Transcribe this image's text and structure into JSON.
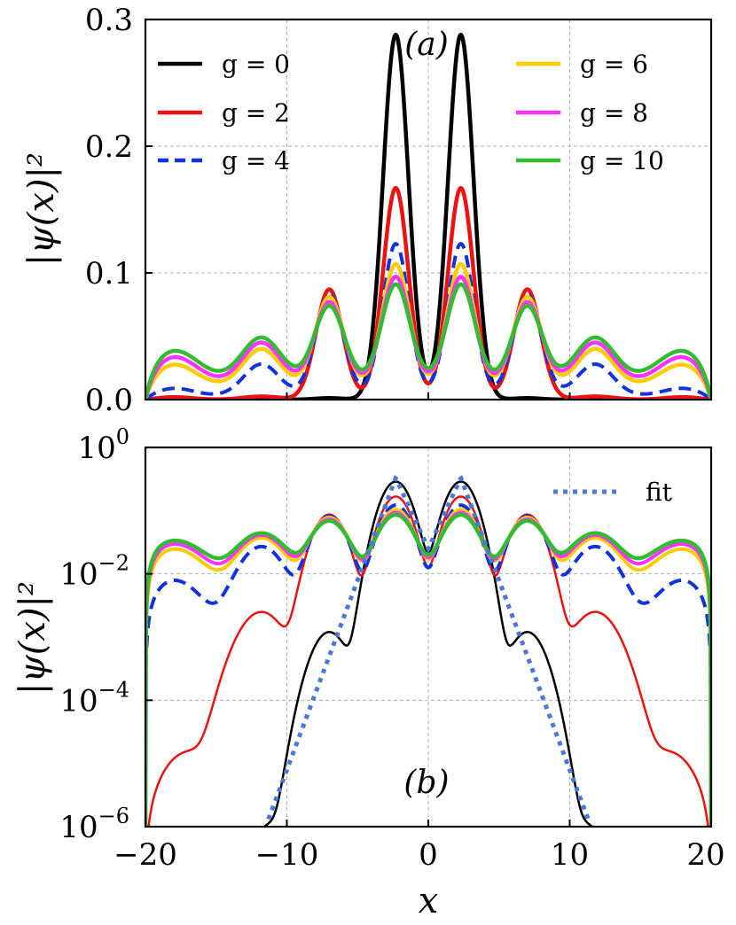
{
  "chart_data": [
    {
      "type": "line",
      "panel": "a",
      "panel_label": "(a)",
      "xlabel": "",
      "ylabel": "|ψ(x)|²",
      "xlim": [
        -20,
        20
      ],
      "ylim": [
        0,
        0.3
      ],
      "yscale": "linear",
      "xticks": [
        -20,
        -10,
        0,
        10,
        20
      ],
      "yticks": [
        0.0,
        0.1,
        0.2,
        0.3
      ],
      "ytick_labels": [
        "0.0",
        "0.1",
        "0.2",
        "0.3"
      ],
      "grid": true,
      "legend": [
        {
          "label": "g = 0",
          "color": "#000000",
          "style": "solid"
        },
        {
          "label": "g = 2",
          "color": "#ee1111",
          "style": "solid"
        },
        {
          "label": "g = 4",
          "color": "#1133dd",
          "style": "dashed"
        },
        {
          "label": "g = 6",
          "color": "#ffcc00",
          "style": "solid"
        },
        {
          "label": "g = 8",
          "color": "#ff33ff",
          "style": "solid"
        },
        {
          "label": "g = 10",
          "color": "#33bb33",
          "style": "solid"
        }
      ],
      "series": [
        {
          "name": "g = 0",
          "color": "#000000",
          "style": "solid",
          "peaks": [
            [
              -2.3,
              0.288,
              0.9
            ],
            [
              2.3,
              0.288,
              0.9
            ],
            [
              -7.0,
              0.0012,
              1.0
            ],
            [
              7.0,
              0.0012,
              1.0
            ]
          ],
          "floor": 0.0
        },
        {
          "name": "g = 2",
          "color": "#ee1111",
          "style": "solid",
          "peaks": [
            [
              -2.3,
              0.167,
              0.9
            ],
            [
              2.3,
              0.167,
              0.9
            ],
            [
              -7.0,
              0.087,
              0.95
            ],
            [
              7.0,
              0.087,
              0.95
            ],
            [
              -11.8,
              0.0025,
              1.3
            ],
            [
              11.8,
              0.0025,
              1.3
            ],
            [
              -18.0,
              0.002,
              1.3
            ],
            [
              18.0,
              0.002,
              1.3
            ]
          ],
          "floor": 0.0
        },
        {
          "name": "g = 4",
          "color": "#1133dd",
          "style": "dashed",
          "peaks": [
            [
              -2.3,
              0.12,
              0.92
            ],
            [
              2.3,
              0.12,
              0.92
            ],
            [
              -7.0,
              0.08,
              0.98
            ],
            [
              7.0,
              0.08,
              0.98
            ],
            [
              -11.8,
              0.025,
              1.25
            ],
            [
              11.8,
              0.025,
              1.25
            ],
            [
              -18.0,
              0.006,
              1.4
            ],
            [
              18.0,
              0.006,
              1.4
            ]
          ],
          "floor": 0.003
        },
        {
          "name": "g = 6",
          "color": "#ffcc00",
          "style": "solid",
          "peaks": [
            [
              -2.3,
              0.097,
              0.95
            ],
            [
              2.3,
              0.097,
              0.95
            ],
            [
              -7.0,
              0.071,
              1.0
            ],
            [
              7.0,
              0.071,
              1.0
            ],
            [
              -11.8,
              0.03,
              1.3
            ],
            [
              11.8,
              0.03,
              1.3
            ],
            [
              -18.0,
              0.018,
              1.6
            ],
            [
              18.0,
              0.018,
              1.6
            ]
          ],
          "floor": 0.01
        },
        {
          "name": "g = 8",
          "color": "#ff33ff",
          "style": "solid",
          "peaks": [
            [
              -2.3,
              0.085,
              0.97
            ],
            [
              2.3,
              0.085,
              0.97
            ],
            [
              -7.0,
              0.065,
              1.02
            ],
            [
              7.0,
              0.065,
              1.02
            ],
            [
              -11.8,
              0.033,
              1.35
            ],
            [
              11.8,
              0.033,
              1.35
            ],
            [
              -18.0,
              0.022,
              1.7
            ],
            [
              18.0,
              0.022,
              1.7
            ]
          ],
          "floor": 0.012
        },
        {
          "name": "g = 10",
          "color": "#33bb33",
          "style": "solid",
          "peaks": [
            [
              -2.3,
              0.077,
              1.0
            ],
            [
              2.3,
              0.077,
              1.0
            ],
            [
              -7.0,
              0.06,
              1.05
            ],
            [
              7.0,
              0.06,
              1.05
            ],
            [
              -11.8,
              0.035,
              1.4
            ],
            [
              11.8,
              0.035,
              1.4
            ],
            [
              -18.0,
              0.025,
              1.8
            ],
            [
              18.0,
              0.025,
              1.8
            ]
          ],
          "floor": 0.014
        }
      ]
    },
    {
      "type": "line",
      "panel": "b",
      "panel_label": "(b)",
      "xlabel": "x",
      "ylabel": "|ψ(x)|²",
      "xlim": [
        -20,
        20
      ],
      "ylim": [
        1e-06,
        1
      ],
      "yscale": "log",
      "xticks": [
        -20,
        -10,
        0,
        10,
        20
      ],
      "xtick_labels": [
        "−20",
        "−10",
        "0",
        "10",
        "20"
      ],
      "ytick_exponents": [
        "0",
        "−2",
        "−4",
        "−6"
      ],
      "ytick_base": "10",
      "grid": true,
      "legend": [
        {
          "label": "fit",
          "color": "#4a78d8",
          "style": "dotted"
        }
      ],
      "fit": {
        "name": "fit",
        "color": "#4a78d8",
        "style": "dotted",
        "peak_x": 2.3,
        "peak_value": 0.33,
        "center_value": 0.025,
        "decay_per_unit": 0.6,
        "x_range": [
          -11.3,
          11.3
        ]
      },
      "series": [
        {
          "name": "g = 0",
          "color": "#000000",
          "style": "solid",
          "width": 2.5,
          "peaks": [
            [
              -2.3,
              0.288,
              0.9
            ],
            [
              2.3,
              0.288,
              0.9
            ],
            [
              -7.0,
              0.0012,
              1.0
            ],
            [
              7.0,
              0.0012,
              1.0
            ],
            [
              -11.3,
              1e-06,
              1.0
            ],
            [
              11.3,
              1e-06,
              1.0
            ]
          ],
          "floor": 1e-08
        },
        {
          "name": "g = 2",
          "color": "#ee1111",
          "style": "solid",
          "width": 2.5,
          "peaks": [
            [
              -2.3,
              0.167,
              0.9
            ],
            [
              2.3,
              0.167,
              0.9
            ],
            [
              -7.0,
              0.087,
              0.95
            ],
            [
              7.0,
              0.087,
              0.95
            ],
            [
              -11.8,
              0.0025,
              1.3
            ],
            [
              11.8,
              0.0025,
              1.3
            ],
            [
              -17.0,
              1.5e-05,
              1.5
            ],
            [
              17.0,
              1.5e-05,
              1.5
            ]
          ],
          "floor": 1e-08
        },
        {
          "name": "g = 4",
          "color": "#1133dd",
          "style": "dashed",
          "width": 4,
          "peaks": [
            [
              -2.3,
              0.12,
              0.92
            ],
            [
              2.3,
              0.12,
              0.92
            ],
            [
              -7.0,
              0.08,
              0.98
            ],
            [
              7.0,
              0.08,
              0.98
            ],
            [
              -11.8,
              0.025,
              1.25
            ],
            [
              11.8,
              0.025,
              1.25
            ],
            [
              -18.0,
              0.006,
              1.4
            ],
            [
              18.0,
              0.006,
              1.4
            ]
          ],
          "floor": 0.002
        },
        {
          "name": "g = 6",
          "color": "#ffcc00",
          "style": "solid",
          "width": 4,
          "peaks": [
            [
              -2.3,
              0.097,
              0.95
            ],
            [
              2.3,
              0.097,
              0.95
            ],
            [
              -7.0,
              0.071,
              1.0
            ],
            [
              7.0,
              0.071,
              1.0
            ],
            [
              -11.8,
              0.03,
              1.3
            ],
            [
              11.8,
              0.03,
              1.3
            ],
            [
              -18.0,
              0.018,
              1.6
            ],
            [
              18.0,
              0.018,
              1.6
            ]
          ],
          "floor": 0.007
        },
        {
          "name": "g = 8",
          "color": "#ff33ff",
          "style": "solid",
          "width": 4,
          "peaks": [
            [
              -2.3,
              0.085,
              0.97
            ],
            [
              2.3,
              0.085,
              0.97
            ],
            [
              -7.0,
              0.065,
              1.02
            ],
            [
              7.0,
              0.065,
              1.02
            ],
            [
              -11.8,
              0.033,
              1.35
            ],
            [
              11.8,
              0.033,
              1.35
            ],
            [
              -18.0,
              0.022,
              1.7
            ],
            [
              18.0,
              0.022,
              1.7
            ]
          ],
          "floor": 0.008
        },
        {
          "name": "g = 10",
          "color": "#33bb33",
          "style": "solid",
          "width": 4.5,
          "peaks": [
            [
              -2.3,
              0.077,
              1.0
            ],
            [
              2.3,
              0.077,
              1.0
            ],
            [
              -7.0,
              0.06,
              1.05
            ],
            [
              7.0,
              0.06,
              1.05
            ],
            [
              -11.8,
              0.035,
              1.4
            ],
            [
              11.8,
              0.035,
              1.4
            ],
            [
              -18.0,
              0.025,
              1.8
            ],
            [
              18.0,
              0.025,
              1.8
            ]
          ],
          "floor": 0.009
        }
      ]
    }
  ]
}
